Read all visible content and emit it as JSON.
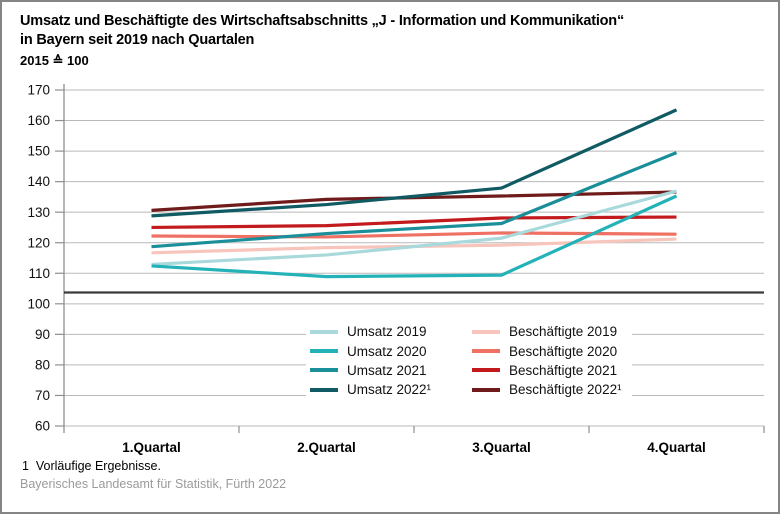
{
  "header": {
    "title_line1": "Umsatz und Beschäftigte des Wirtschaftsabschnitts „J - Information und Kommunikation“",
    "title_line2": "in Bayern seit 2019 nach Quartalen",
    "subtitle": "2015 ≙ 100"
  },
  "footer": {
    "footnote": "1  Vorläufige Ergebnisse.",
    "source": "Bayerisches Landesamt für Statistik, Fürth 2022"
  },
  "colors": {
    "grid": "#b9b9b9",
    "axis": "#8f8f8f",
    "reference_line": "#3b3b3b",
    "tick_text": "#111111",
    "border": "#858585"
  },
  "chart_data": {
    "type": "line",
    "title": "Umsatz und Beschäftigte des Wirtschaftsabschnitts „J - Information und Kommunikation“ in Bayern seit 2019 nach Quartalen",
    "subtitle": "2015 ≙ 100",
    "categories": [
      "1.Quartal",
      "2.Quartal",
      "3.Quartal",
      "4.Quartal"
    ],
    "series": [
      {
        "name": "Umsatz 2019",
        "color": "#a9d9db",
        "values": [
          112.9,
          116.0,
          121.5,
          136.9
        ]
      },
      {
        "name": "Umsatz 2020",
        "color": "#23b2b8",
        "values": [
          112.4,
          108.9,
          109.4,
          135.3
        ]
      },
      {
        "name": "Umsatz 2021",
        "color": "#1a8f9a",
        "values": [
          118.7,
          123.0,
          126.3,
          149.5
        ]
      },
      {
        "name": "Umsatz 2022¹",
        "color": "#0f5a63",
        "values": [
          128.8,
          132.5,
          137.9,
          163.5
        ]
      },
      {
        "name": "Beschäftigte 2019",
        "color": "#f7c5bb",
        "values": [
          116.7,
          118.4,
          119.2,
          121.2
        ]
      },
      {
        "name": "Beschäftigte 2020",
        "color": "#ee7163",
        "values": [
          122.2,
          121.9,
          123.2,
          122.8
        ]
      },
      {
        "name": "Beschäftigte 2021",
        "color": "#c31a1d",
        "values": [
          125.0,
          125.6,
          128.1,
          128.4
        ]
      },
      {
        "name": "Beschäftigte 2022¹",
        "color": "#701b1b",
        "values": [
          130.6,
          134.2,
          135.3,
          136.6
        ]
      }
    ],
    "ylim": [
      60,
      170
    ],
    "ytick_step": 10,
    "reference_line": 103.7,
    "grid": true,
    "legend_position": "inside-bottom-center"
  }
}
